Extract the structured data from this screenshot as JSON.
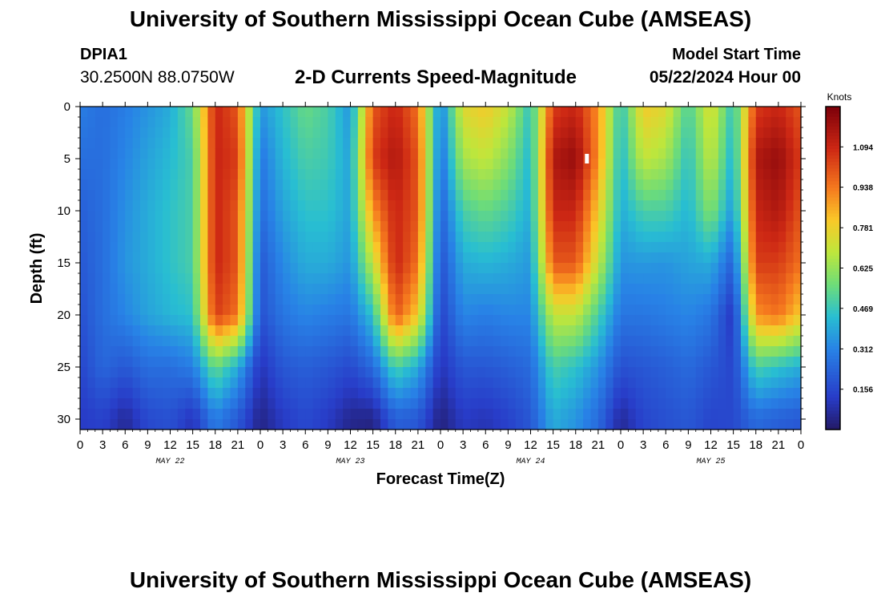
{
  "page": {
    "title": "University of Southern Mississippi Ocean Cube (AMSEAS)",
    "footer_title": "University of Southern Mississippi Ocean Cube (AMSEAS)"
  },
  "station": {
    "id": "DPIA1",
    "coordinates": "30.2500N  88.0750W"
  },
  "model": {
    "start_label": "Model Start Time",
    "start_value": "05/22/2024 Hour 00"
  },
  "chart_data": {
    "type": "heatmap",
    "title": "2-D Currents Speed-Magnitude",
    "xlabel": "Forecast Time(Z)",
    "ylabel": "Depth (ft)",
    "x_unit": "forecast hour",
    "xlim": [
      0,
      96
    ],
    "ylim": [
      0,
      31
    ],
    "y_inverted": true,
    "x_ticks": [
      0,
      3,
      6,
      9,
      12,
      15,
      18,
      21,
      24,
      27,
      30,
      33,
      36,
      39,
      42,
      45,
      48,
      51,
      54,
      57,
      60,
      63,
      66,
      69,
      72,
      75,
      78,
      81,
      84,
      87,
      90,
      93,
      96
    ],
    "x_tick_labels": [
      "0",
      "3",
      "6",
      "9",
      "12",
      "15",
      "18",
      "21",
      "0",
      "3",
      "6",
      "9",
      "12",
      "15",
      "18",
      "21",
      "0",
      "3",
      "6",
      "9",
      "12",
      "15",
      "18",
      "21",
      "0",
      "3",
      "6",
      "9",
      "12",
      "15",
      "18",
      "21",
      "0"
    ],
    "date_labels": [
      {
        "text": "MAY 22",
        "x": 12
      },
      {
        "text": "MAY 23",
        "x": 36
      },
      {
        "text": "MAY 24",
        "x": 60
      },
      {
        "text": "MAY 25",
        "x": 84
      }
    ],
    "y_ticks": [
      0,
      5,
      10,
      15,
      20,
      25,
      30
    ],
    "y_tick_labels": [
      "0",
      "5",
      "10",
      "15",
      "20",
      "25",
      "30"
    ],
    "colorbar": {
      "unit": "Knots",
      "range": [
        0,
        1.25
      ],
      "ticks": [
        0.156,
        0.312,
        0.469,
        0.625,
        0.781,
        0.938,
        1.094
      ],
      "tick_labels": [
        "0.156",
        "0.312",
        "0.469",
        "0.625",
        "0.781",
        "0.938",
        "1.094"
      ],
      "colormap": "jet"
    },
    "current_speed_knots": {
      "description": "Estimated current speed by forecast hour (rows) and depth (columns)",
      "depths_ft": [
        0,
        5,
        10,
        15,
        20,
        25,
        30
      ],
      "rows": [
        {
          "hour": 0,
          "values": [
            0.3,
            0.26,
            0.22,
            0.2,
            0.18,
            0.15,
            0.12
          ]
        },
        {
          "hour": 3,
          "values": [
            0.26,
            0.26,
            0.26,
            0.26,
            0.26,
            0.24,
            0.14
          ]
        },
        {
          "hour": 6,
          "values": [
            0.3,
            0.32,
            0.34,
            0.35,
            0.32,
            0.2,
            0.06
          ]
        },
        {
          "hour": 9,
          "values": [
            0.35,
            0.38,
            0.4,
            0.4,
            0.38,
            0.26,
            0.16
          ]
        },
        {
          "hour": 12,
          "values": [
            0.4,
            0.43,
            0.45,
            0.45,
            0.42,
            0.26,
            0.18
          ]
        },
        {
          "hour": 15,
          "values": [
            0.55,
            0.5,
            0.5,
            0.5,
            0.45,
            0.3,
            0.1
          ]
        },
        {
          "hour": 18,
          "values": [
            1.1,
            1.1,
            1.1,
            1.1,
            1.05,
            0.55,
            0.3
          ]
        },
        {
          "hour": 21,
          "values": [
            1.0,
            1.05,
            1.0,
            1.0,
            0.95,
            0.4,
            0.2
          ]
        },
        {
          "hour": 24,
          "values": [
            0.35,
            0.28,
            0.25,
            0.2,
            0.18,
            0.1,
            0.04
          ]
        },
        {
          "hour": 27,
          "values": [
            0.45,
            0.42,
            0.38,
            0.33,
            0.28,
            0.2,
            0.12
          ]
        },
        {
          "hour": 30,
          "values": [
            0.55,
            0.5,
            0.45,
            0.4,
            0.32,
            0.22,
            0.16
          ]
        },
        {
          "hour": 33,
          "values": [
            0.5,
            0.48,
            0.45,
            0.4,
            0.3,
            0.2,
            0.12
          ]
        },
        {
          "hour": 36,
          "values": [
            0.35,
            0.38,
            0.38,
            0.35,
            0.28,
            0.16,
            0.05
          ]
        },
        {
          "hour": 39,
          "values": [
            1.0,
            1.05,
            0.9,
            0.7,
            0.45,
            0.25,
            0.04
          ]
        },
        {
          "hour": 42,
          "values": [
            1.1,
            1.15,
            1.1,
            1.1,
            1.0,
            0.5,
            0.22
          ]
        },
        {
          "hour": 45,
          "values": [
            0.95,
            1.0,
            1.0,
            0.95,
            0.8,
            0.4,
            0.2
          ]
        },
        {
          "hour": 48,
          "values": [
            0.3,
            0.26,
            0.22,
            0.18,
            0.14,
            0.1,
            0.03
          ]
        },
        {
          "hour": 51,
          "values": [
            0.75,
            0.65,
            0.5,
            0.4,
            0.32,
            0.2,
            0.12
          ]
        },
        {
          "hour": 54,
          "values": [
            0.8,
            0.7,
            0.55,
            0.42,
            0.3,
            0.2,
            0.1
          ]
        },
        {
          "hour": 57,
          "values": [
            0.7,
            0.6,
            0.5,
            0.4,
            0.32,
            0.22,
            0.14
          ]
        },
        {
          "hour": 60,
          "values": [
            0.45,
            0.42,
            0.4,
            0.36,
            0.32,
            0.25,
            0.2
          ]
        },
        {
          "hour": 63,
          "values": [
            1.05,
            1.15,
            1.1,
            1.0,
            0.7,
            0.5,
            0.4
          ]
        },
        {
          "hour": 66,
          "values": [
            1.1,
            1.2,
            1.1,
            1.0,
            0.7,
            0.45,
            0.35
          ]
        },
        {
          "hour": 69,
          "values": [
            0.9,
            0.9,
            0.8,
            0.7,
            0.5,
            0.35,
            0.25
          ]
        },
        {
          "hour": 72,
          "values": [
            0.45,
            0.42,
            0.4,
            0.35,
            0.28,
            0.18,
            0.06
          ]
        },
        {
          "hour": 75,
          "values": [
            0.8,
            0.7,
            0.5,
            0.36,
            0.28,
            0.2,
            0.15
          ]
        },
        {
          "hour": 78,
          "values": [
            0.75,
            0.65,
            0.5,
            0.35,
            0.3,
            0.22,
            0.18
          ]
        },
        {
          "hour": 81,
          "values": [
            0.5,
            0.45,
            0.42,
            0.38,
            0.32,
            0.25,
            0.2
          ]
        },
        {
          "hour": 84,
          "values": [
            0.75,
            0.7,
            0.6,
            0.4,
            0.28,
            0.2,
            0.15
          ]
        },
        {
          "hour": 87,
          "values": [
            0.45,
            0.4,
            0.35,
            0.22,
            0.1,
            0.15,
            0.16
          ]
        },
        {
          "hour": 90,
          "values": [
            1.05,
            1.15,
            1.1,
            1.05,
            0.9,
            0.5,
            0.25
          ]
        },
        {
          "hour": 93,
          "values": [
            1.1,
            1.2,
            1.15,
            1.05,
            0.95,
            0.45,
            0.22
          ]
        },
        {
          "hour": 96,
          "values": [
            1.0,
            1.05,
            1.0,
            0.95,
            0.8,
            0.4,
            0.2
          ]
        }
      ]
    },
    "marker": {
      "hour": 67.5,
      "depth": 5
    }
  }
}
